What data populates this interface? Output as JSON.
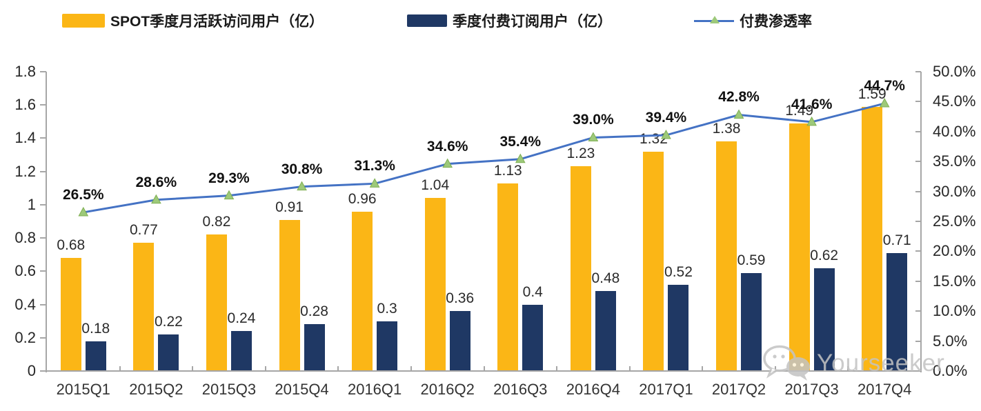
{
  "legend": {
    "items": [
      {
        "label": "SPOT季度月活跃访问用户（亿）"
      },
      {
        "label": "季度付费订阅用户（亿）"
      },
      {
        "label": "付费渗透率"
      }
    ]
  },
  "colors": {
    "mau_bar": "#FBB616",
    "sub_bar": "#1F3864",
    "line": "#4472C4",
    "marker_fill": "#9DC97A",
    "marker_stroke": "#7FAF52",
    "axis": "#A6A6A6",
    "watermark": "#C3C3C3"
  },
  "chart_data": {
    "type": "bar",
    "subtype": "grouped-bars-with-line",
    "categories": [
      "2015Q1",
      "2015Q2",
      "2015Q3",
      "2015Q4",
      "2016Q1",
      "2016Q2",
      "2016Q3",
      "2016Q4",
      "2017Q1",
      "2017Q2",
      "2017Q3",
      "2017Q4"
    ],
    "series": [
      {
        "name": "SPOT季度月活跃访问用户（亿）",
        "type": "bar",
        "axis": "left",
        "values": [
          0.68,
          0.77,
          0.82,
          0.91,
          0.96,
          1.04,
          1.13,
          1.23,
          1.32,
          1.38,
          1.49,
          1.59
        ],
        "labels": [
          "0.68",
          "0.77",
          "0.82",
          "0.91",
          "0.96",
          "1.04",
          "1.13",
          "1.23",
          "1.32",
          "1.38",
          "1.49",
          "1.59"
        ]
      },
      {
        "name": "季度付费订阅用户（亿）",
        "type": "bar",
        "axis": "left",
        "values": [
          0.18,
          0.22,
          0.24,
          0.28,
          0.3,
          0.36,
          0.4,
          0.48,
          0.52,
          0.59,
          0.62,
          0.71
        ],
        "labels": [
          "0.18",
          "0.22",
          "0.24",
          "0.28",
          "0.3",
          "0.36",
          "0.4",
          "0.48",
          "0.52",
          "0.59",
          "0.62",
          "0.71"
        ]
      },
      {
        "name": "付费渗透率",
        "type": "line",
        "axis": "right",
        "values": [
          26.5,
          28.6,
          29.3,
          30.8,
          31.3,
          34.6,
          35.4,
          39.0,
          39.4,
          42.8,
          41.6,
          44.7
        ],
        "labels": [
          "26.5%",
          "28.6%",
          "29.3%",
          "30.8%",
          "31.3%",
          "34.6%",
          "35.4%",
          "39.0%",
          "39.4%",
          "42.8%",
          "41.6%",
          "44.7%"
        ]
      }
    ],
    "left_axis": {
      "min": 0,
      "max": 1.8,
      "step": 0.2,
      "tick_labels": [
        "0",
        "0.2",
        "0.4",
        "0.6",
        "0.8",
        "1",
        "1.2",
        "1.4",
        "1.6",
        "1.8"
      ]
    },
    "right_axis": {
      "min": 0,
      "max": 50,
      "step": 5,
      "tick_labels": [
        "0.0%",
        "5.0%",
        "10.0%",
        "15.0%",
        "20.0%",
        "25.0%",
        "30.0%",
        "35.0%",
        "40.0%",
        "45.0%",
        "50.0%"
      ]
    },
    "legend_position": "top",
    "grid": false,
    "title": ""
  },
  "watermark": {
    "text": "Yourseeker",
    "icon": "wechat-icon"
  }
}
